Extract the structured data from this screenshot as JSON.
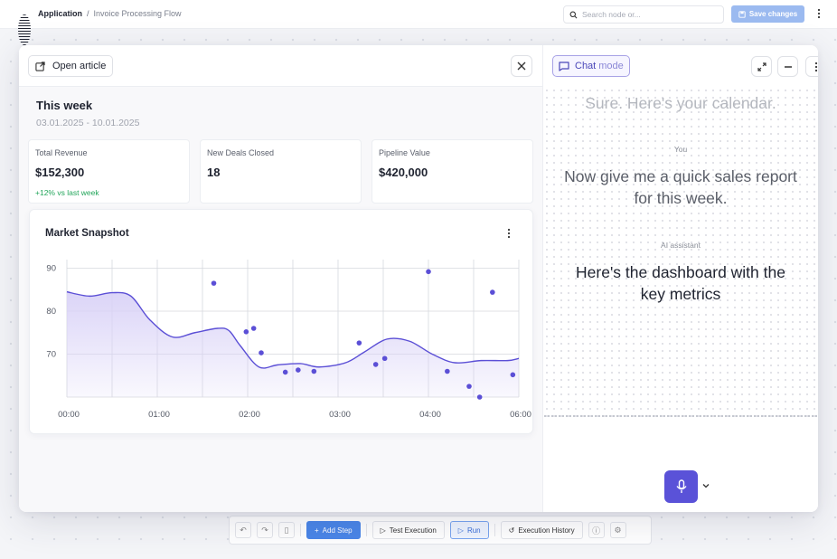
{
  "topbar": {
    "breadcrumb_app": "Application",
    "breadcrumb_sep": "/",
    "breadcrumb_flow": "Invoice Processing Flow",
    "search_placeholder": "Search node or...",
    "save_label": "Save changes",
    "save_color": "#9bbaf0"
  },
  "toolbar": {
    "add_step": "Add Step",
    "test_execution": "Test Execution",
    "run": "Run",
    "execution_history": "Execution History",
    "accent": "#4a86e8"
  },
  "modal": {
    "open_article": "Open article",
    "week_title": "This week",
    "week_range": "03.01.2025 - 10.01.2025",
    "kpis": [
      {
        "label": "Total Revenue",
        "value": "$152,300",
        "delta": "+12% vs last week"
      },
      {
        "label": "New Deals Closed",
        "value": "18",
        "delta": ""
      },
      {
        "label": "Pipeline Value",
        "value": "$420,000",
        "delta": ""
      }
    ],
    "chart_title": "Market Snapshot"
  },
  "chat": {
    "mode_label": "Chat",
    "mode_suffix": "mode",
    "prev_ai_message": "Sure. Here's your calendar.",
    "user_speaker": "You",
    "user_message": "Now give me a quick sales report for this week.",
    "ai_speaker": "AI assistant",
    "ai_message": "Here's the dashboard with the key metrics",
    "mic_color": "#5a52d8"
  },
  "chart_data": {
    "type": "line",
    "title": "Market Snapshot",
    "xlabel": "",
    "ylabel": "",
    "x_ticks": [
      "00:00",
      "01:00",
      "02:00",
      "03:00",
      "04:00",
      "06:00"
    ],
    "y_ticks": [
      70,
      80,
      90
    ],
    "ylim": [
      60,
      92
    ],
    "xlim_hours": [
      0,
      6
    ],
    "line_color": "#5b4fd6",
    "fill_color": "#d9d2f7",
    "grid": true,
    "series": [
      {
        "type": "line",
        "x": [
          0,
          0.3,
          0.6,
          0.85,
          1.1,
          1.4,
          1.7,
          2.0,
          2.15,
          2.3,
          2.55,
          2.8,
          3.1,
          3.35,
          3.7,
          3.95,
          4.25,
          4.55,
          4.85,
          5.15,
          5.5,
          5.85,
          6.0
        ],
        "y": [
          84.5,
          83.5,
          84.3,
          83.5,
          78,
          74,
          75,
          76,
          75.5,
          72,
          67,
          67.5,
          67.8,
          67,
          68,
          70.5,
          73.5,
          73,
          70,
          68,
          68.5,
          68.5,
          69
        ]
      },
      {
        "type": "scatter",
        "x": [
          1.95,
          2.38,
          2.48,
          2.58,
          2.9,
          3.07,
          3.28,
          3.88,
          4.1,
          4.22,
          4.8,
          5.05,
          5.34,
          5.48,
          5.65,
          5.92
        ],
        "y": [
          86.5,
          75.2,
          76.0,
          70.3,
          65.8,
          66.3,
          66.0,
          72.6,
          67.6,
          69.0,
          89.2,
          66.0,
          62.5,
          60.0,
          84.4,
          65.2
        ]
      }
    ]
  }
}
